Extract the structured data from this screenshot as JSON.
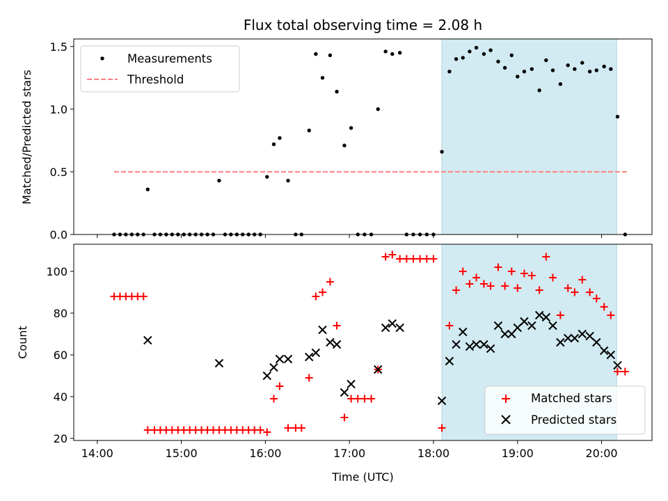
{
  "chart_data": {
    "title": "Flux total observing time = 2.08 h",
    "xlabel": "Time (UTC)",
    "x_ticks": [
      "14:00",
      "15:00",
      "16:00",
      "17:00",
      "18:00",
      "19:00",
      "20:00"
    ],
    "x_tick_hours": [
      14,
      15,
      16,
      17,
      18,
      19,
      20
    ],
    "xlim_hours": [
      13.72,
      20.6
    ],
    "highlight_span_hours": [
      18.1,
      20.18
    ],
    "highlight_color": "#add8e6",
    "panels": [
      {
        "type": "scatter",
        "ylabel": "Matched/Predicted stars",
        "ylim": [
          0,
          1.56
        ],
        "y_ticks": [
          "0.0",
          "0.5",
          "1.0",
          "1.5"
        ],
        "y_tick_values": [
          0,
          0.5,
          1.0,
          1.5
        ],
        "legend_position": "upper-left",
        "legend": [
          {
            "label": "Measurements",
            "marker": "dot",
            "color": "#000000"
          },
          {
            "label": "Threshold",
            "marker": "dashed-line",
            "color": "#ff7f7f"
          }
        ],
        "threshold": {
          "y": 0.5,
          "x_range_hours": [
            14.2,
            20.3
          ]
        },
        "series": [
          {
            "name": "Measurements",
            "color": "#000000",
            "x_hours": [
              14.2,
              14.27,
              14.34,
              14.41,
              14.48,
              14.55,
              14.6,
              14.68,
              14.75,
              14.82,
              14.89,
              14.96,
              15.03,
              15.1,
              15.17,
              15.24,
              15.31,
              15.38,
              15.45,
              15.52,
              15.59,
              15.66,
              15.73,
              15.8,
              15.87,
              15.94,
              16.02,
              16.1,
              16.17,
              16.27,
              16.36,
              16.43,
              16.52,
              16.6,
              16.68,
              16.77,
              16.85,
              16.94,
              17.02,
              17.1,
              17.18,
              17.26,
              17.34,
              17.43,
              17.51,
              17.6,
              17.68,
              17.76,
              17.84,
              17.92,
              18.0,
              18.1,
              18.19,
              18.27,
              18.35,
              18.43,
              18.51,
              18.6,
              18.68,
              18.77,
              18.85,
              18.93,
              19.0,
              19.08,
              19.17,
              19.26,
              19.34,
              19.42,
              19.51,
              19.6,
              19.68,
              19.77,
              19.86,
              19.94,
              20.03,
              20.11,
              20.19,
              20.28
            ],
            "y": [
              0,
              0,
              0,
              0,
              0,
              0,
              0.36,
              0,
              0,
              0,
              0,
              0,
              0,
              0,
              0,
              0,
              0,
              0,
              0.43,
              0,
              0,
              0,
              0,
              0,
              0,
              0,
              0.46,
              0.72,
              0.77,
              0.43,
              0,
              0,
              0.83,
              1.44,
              1.25,
              1.43,
              1.14,
              0.71,
              0.85,
              0,
              0,
              0,
              1.0,
              1.46,
              1.44,
              1.45,
              0,
              0,
              0,
              0,
              0,
              0.66,
              1.3,
              1.4,
              1.41,
              1.46,
              1.49,
              1.44,
              1.47,
              1.38,
              1.33,
              1.43,
              1.26,
              1.3,
              1.32,
              1.15,
              1.39,
              1.31,
              1.2,
              1.35,
              1.32,
              1.37,
              1.3,
              1.31,
              1.34,
              1.32,
              0.94,
              0
            ]
          }
        ]
      },
      {
        "type": "scatter",
        "ylabel": "Count",
        "ylim": [
          19,
          113
        ],
        "y_ticks": [
          "20",
          "40",
          "60",
          "80",
          "100"
        ],
        "y_tick_values": [
          20,
          40,
          60,
          80,
          100
        ],
        "legend_position": "lower-right",
        "legend": [
          {
            "label": "Matched stars",
            "marker": "plus",
            "color": "#ff0000"
          },
          {
            "label": "Predicted stars",
            "marker": "x",
            "color": "#000000"
          }
        ],
        "series": [
          {
            "name": "Matched stars",
            "marker": "plus",
            "color": "#ff0000",
            "x_hours": [
              14.2,
              14.27,
              14.34,
              14.41,
              14.48,
              14.55,
              14.6,
              14.68,
              14.75,
              14.82,
              14.89,
              14.96,
              15.03,
              15.1,
              15.17,
              15.24,
              15.31,
              15.38,
              15.45,
              15.52,
              15.59,
              15.66,
              15.73,
              15.8,
              15.87,
              15.94,
              16.02,
              16.1,
              16.17,
              16.27,
              16.36,
              16.43,
              16.52,
              16.6,
              16.68,
              16.77,
              16.85,
              16.94,
              17.02,
              17.1,
              17.18,
              17.26,
              17.34,
              17.43,
              17.51,
              17.6,
              17.68,
              17.76,
              17.84,
              17.92,
              18.0,
              18.1,
              18.19,
              18.27,
              18.35,
              18.43,
              18.51,
              18.6,
              18.68,
              18.77,
              18.85,
              18.93,
              19.0,
              19.08,
              19.17,
              19.26,
              19.34,
              19.42,
              19.51,
              19.6,
              19.68,
              19.77,
              19.86,
              19.94,
              20.03,
              20.11,
              20.19,
              20.28
            ],
            "y": [
              88,
              88,
              88,
              88,
              88,
              88,
              24,
              24,
              24,
              24,
              24,
              24,
              24,
              24,
              24,
              24,
              24,
              24,
              24,
              24,
              24,
              24,
              24,
              24,
              24,
              24,
              23,
              39,
              45,
              25,
              25,
              25,
              49,
              88,
              90,
              95,
              74,
              30,
              39,
              39,
              39,
              39,
              53,
              107,
              108,
              106,
              106,
              106,
              106,
              106,
              106,
              25,
              74,
              91,
              100,
              94,
              97,
              94,
              93,
              102,
              93,
              100,
              92,
              99,
              98,
              91,
              107,
              97,
              79,
              92,
              90,
              96,
              90,
              87,
              83,
              79,
              52,
              52
            ]
          },
          {
            "name": "Predicted stars",
            "marker": "x",
            "color": "#000000",
            "x_hours": [
              14.6,
              15.45,
              16.02,
              16.1,
              16.17,
              16.27,
              16.52,
              16.6,
              16.68,
              16.77,
              16.85,
              16.94,
              17.02,
              17.34,
              17.43,
              17.51,
              17.6,
              18.1,
              18.19,
              18.27,
              18.35,
              18.43,
              18.51,
              18.6,
              18.68,
              18.77,
              18.85,
              18.93,
              19.0,
              19.08,
              19.17,
              19.26,
              19.34,
              19.42,
              19.51,
              19.6,
              19.68,
              19.77,
              19.86,
              19.94,
              20.03,
              20.11,
              20.19
            ],
            "y": [
              67,
              56,
              50,
              54,
              58,
              58,
              59,
              61,
              72,
              66,
              65,
              42,
              46,
              53,
              73,
              75,
              73,
              38,
              57,
              65,
              71,
              64,
              65,
              65,
              63,
              74,
              70,
              70,
              73,
              76,
              74,
              79,
              78,
              74,
              66,
              68,
              68,
              70,
              69,
              66,
              62,
              60,
              55
            ]
          }
        ]
      }
    ]
  }
}
